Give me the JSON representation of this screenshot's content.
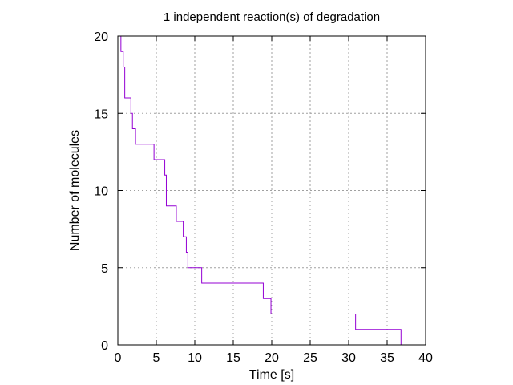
{
  "chart_data": {
    "type": "line",
    "title": "1 independent reaction(s) of degradation",
    "xlabel": "Time [s]",
    "ylabel": "Number of molecules",
    "xlim": [
      0,
      40
    ],
    "ylim": [
      0,
      20
    ],
    "x_ticks": [
      0,
      5,
      10,
      15,
      20,
      25,
      30,
      35,
      40
    ],
    "y_ticks": [
      0,
      5,
      10,
      15,
      20
    ],
    "grid": true,
    "line_style": "step",
    "colors": {
      "series": "#9400d3",
      "grid": "#a0a0a0",
      "axis": "#000000"
    },
    "series": [
      {
        "x": [
          0,
          0.4,
          0.7,
          0.9,
          1.7,
          1.9,
          2.3,
          4.7,
          6.1,
          6.3,
          7.6,
          8.5,
          8.9,
          9.1,
          10.9,
          18.9,
          19.9,
          30.9,
          36.8
        ],
        "y": [
          20,
          19,
          18,
          16,
          15,
          14,
          13,
          12,
          11,
          9,
          8,
          7,
          6,
          5,
          4,
          3,
          2,
          1,
          0
        ]
      }
    ]
  }
}
